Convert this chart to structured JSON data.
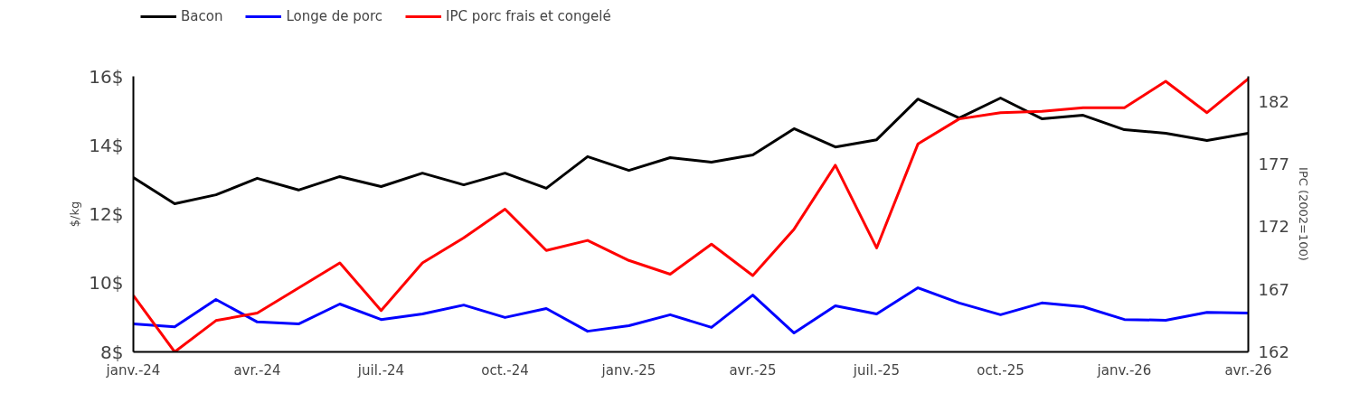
{
  "chart_data": {
    "type": "line",
    "ylabel": "$/kg",
    "y2label": "IPC (2002=100)",
    "categories": [
      "janv.-24",
      null,
      null,
      "avr.-24",
      null,
      null,
      "juil.-24",
      null,
      null,
      "oct.-24",
      null,
      null,
      "janv.-25",
      null,
      null,
      "avr.-25",
      null,
      null,
      "juil.-25",
      null,
      null,
      "oct.-25",
      null,
      null,
      "janv.-26",
      null,
      null,
      "avr.-26"
    ],
    "series": [
      {
        "name": "Bacon",
        "color": "#000000",
        "values": [
          13.06,
          12.3,
          12.56,
          13.04,
          12.7,
          13.09,
          12.8,
          13.19,
          12.85,
          13.19,
          12.75,
          13.67,
          13.27,
          13.64,
          13.51,
          13.72,
          14.48,
          13.95,
          14.16,
          15.34,
          14.79,
          15.37,
          14.77,
          14.87,
          14.45,
          14.35,
          14.14,
          14.35
        ]
      },
      {
        "name": "Longe de porc",
        "color": "#0000ff",
        "values": [
          8.81,
          8.73,
          9.52,
          8.87,
          8.81,
          9.39,
          8.94,
          9.1,
          9.36,
          9.0,
          9.26,
          8.6,
          8.76,
          9.08,
          8.71,
          9.65,
          8.55,
          9.34,
          9.1,
          9.86,
          9.42,
          9.08,
          9.42,
          9.31,
          8.94,
          8.92,
          9.15,
          9.13
        ]
      },
      {
        "name": "IPC porc frais et congelé",
        "color": "#ff0000",
        "axis": "y2",
        "values": [
          166.5,
          162.0,
          164.5,
          165.1,
          167.1,
          169.1,
          165.3,
          169.1,
          171.1,
          173.4,
          170.1,
          170.9,
          169.3,
          168.2,
          170.6,
          168.1,
          171.8,
          176.9,
          170.3,
          178.6,
          180.6,
          181.1,
          181.2,
          181.5,
          181.5,
          183.6,
          181.1,
          183.8
        ]
      }
    ],
    "ylim": [
      8,
      16
    ],
    "yticks": [
      {
        "value": 8,
        "label": "8$"
      },
      {
        "value": 10,
        "label": "10$"
      },
      {
        "value": 12,
        "label": "12$"
      },
      {
        "value": 14,
        "label": "14$"
      },
      {
        "value": 16,
        "label": "16$"
      }
    ],
    "y2lim": [
      162,
      184
    ],
    "y2ticks": [
      162,
      167,
      172,
      177,
      182
    ],
    "grid": false,
    "legend": "top left",
    "marker": "none",
    "line_style": "solid"
  }
}
